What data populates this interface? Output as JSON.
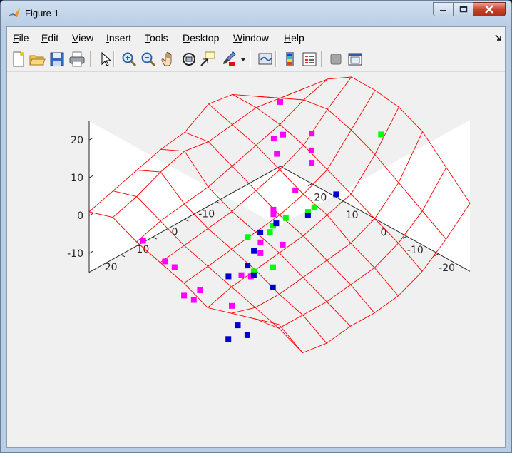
{
  "window": {
    "title": "Figure 1"
  },
  "menu": [
    {
      "label": "File",
      "ul": "F",
      "rest": "ile"
    },
    {
      "label": "Edit",
      "ul": "E",
      "rest": "dit"
    },
    {
      "label": "View",
      "ul": "V",
      "rest": "iew"
    },
    {
      "label": "Insert",
      "ul": "I",
      "rest": "nsert"
    },
    {
      "label": "Tools",
      "ul": "T",
      "rest": "ools"
    },
    {
      "label": "Desktop",
      "ul": "D",
      "rest": "esktop"
    },
    {
      "label": "Window",
      "ul": "W",
      "rest": "indow"
    },
    {
      "label": "Help",
      "ul": "H",
      "rest": "elp"
    }
  ],
  "toolbar": [
    "new-figure-icon",
    "open-file-icon",
    "save-figure-icon",
    "print-figure-icon",
    "edit-plot-arrow-icon",
    "zoom-in-icon",
    "zoom-out-icon",
    "pan-hand-icon",
    "rotate-3d-icon",
    "data-cursor-icon",
    "brush-icon",
    "link-plot-icon",
    "insert-colorbar-icon",
    "insert-legend-icon",
    "hide-plot-tools-icon",
    "show-plot-tools-icon"
  ],
  "colors": {
    "surface": "#ff0000",
    "magenta_points": "#ff00ff",
    "green_points": "#00ff00",
    "blue_points": "#0000cc"
  },
  "chart_data": {
    "type": "scatter",
    "subtype": "3d-mesh-with-scatter",
    "title": "",
    "xlabel": "",
    "ylabel": "",
    "zlabel": "",
    "xlim": [
      -30,
      30
    ],
    "ylim": [
      -30,
      30
    ],
    "zlim": [
      -15,
      25
    ],
    "x_ticks": [
      "-20",
      "-10",
      "0",
      "10",
      "20"
    ],
    "y_ticks": [
      "-10",
      "0",
      "10",
      "20"
    ],
    "z_ticks": [
      "-10",
      "0",
      "10",
      "20"
    ],
    "grid": false,
    "mesh": {
      "grid_x": [
        -30,
        -22.5,
        -15,
        -7.5,
        0,
        7.5,
        15,
        22.5,
        30
      ],
      "grid_y": [
        -30,
        -22.5,
        -15,
        -7.5,
        0,
        7.5,
        15,
        22.5,
        30
      ],
      "z": [
        [
          -1,
          -12,
          -13,
          -12,
          -12,
          -11,
          -8,
          -3,
          3
        ],
        [
          -3,
          -9,
          -9,
          -9,
          -8,
          -7,
          -4,
          1,
          9
        ],
        [
          -5,
          -7,
          -7,
          -6,
          -5,
          -4,
          -1,
          5,
          15
        ],
        [
          -7,
          -5,
          -4,
          -3,
          -2,
          0,
          2,
          9,
          18
        ],
        [
          -4,
          -3,
          -2,
          -1,
          0,
          2,
          5,
          12,
          19
        ],
        [
          -2,
          -1,
          0,
          1,
          3,
          5,
          8,
          14,
          19
        ],
        [
          0,
          2,
          3,
          4,
          6,
          8,
          10,
          13,
          15
        ],
        [
          3,
          5,
          8,
          10,
          9,
          10,
          11,
          10,
          9
        ],
        [
          1,
          3,
          5,
          7,
          8,
          12,
          11,
          7,
          3
        ]
      ]
    },
    "series": [
      {
        "name": "",
        "color": "#ff00ff",
        "points": [
          [
            30,
            30,
            2
          ],
          [
            24,
            26,
            -3
          ],
          [
            26,
            16,
            2
          ],
          [
            22,
            12,
            -2
          ],
          [
            18,
            17,
            5
          ],
          [
            18,
            8,
            5
          ],
          [
            10,
            12,
            -10
          ],
          [
            7,
            9,
            -6
          ],
          [
            5,
            4,
            -12
          ],
          [
            0,
            6,
            -10
          ],
          [
            -2,
            4,
            -11
          ],
          [
            -9,
            0,
            -12
          ],
          [
            -8,
            4,
            -14
          ],
          [
            -15,
            0,
            -17
          ],
          [
            -22,
            3,
            -11
          ],
          [
            -26,
            4,
            -11
          ],
          [
            -15,
            12,
            -21
          ],
          [
            -19,
            24,
            -9
          ],
          [
            2,
            -3,
            7
          ],
          [
            -30,
            6,
            -1
          ],
          [
            -28,
            5,
            -3
          ],
          [
            18,
            19,
            -1
          ]
        ]
      },
      {
        "name": "",
        "color": "#00ff00",
        "points": [
          [
            12,
            -20,
            25
          ],
          [
            -2,
            -13,
            9
          ],
          [
            0,
            -9,
            5
          ],
          [
            -2,
            -4,
            2
          ],
          [
            -4,
            -2,
            0
          ],
          [
            -2,
            1,
            -4
          ],
          [
            -8,
            2,
            -3
          ],
          [
            -4,
            -2,
            -11
          ],
          [
            -20,
            -12,
            0
          ]
        ]
      },
      {
        "name": "",
        "color": "#0000cc",
        "points": [
          [
            -12,
            -30,
            25
          ],
          [
            -1,
            -10,
            5
          ],
          [
            -5,
            -4,
            2
          ],
          [
            -9,
            -3,
            1
          ],
          [
            -12,
            -4,
            -2
          ],
          [
            -15,
            -5,
            -4
          ],
          [
            -20,
            -4,
            -5
          ],
          [
            -14,
            -12,
            -7
          ],
          [
            -20,
            -12,
            -1
          ],
          [
            -26,
            -13,
            -11
          ],
          [
            -23,
            -13,
            -15
          ],
          [
            -26,
            -10,
            -16
          ]
        ]
      }
    ]
  }
}
